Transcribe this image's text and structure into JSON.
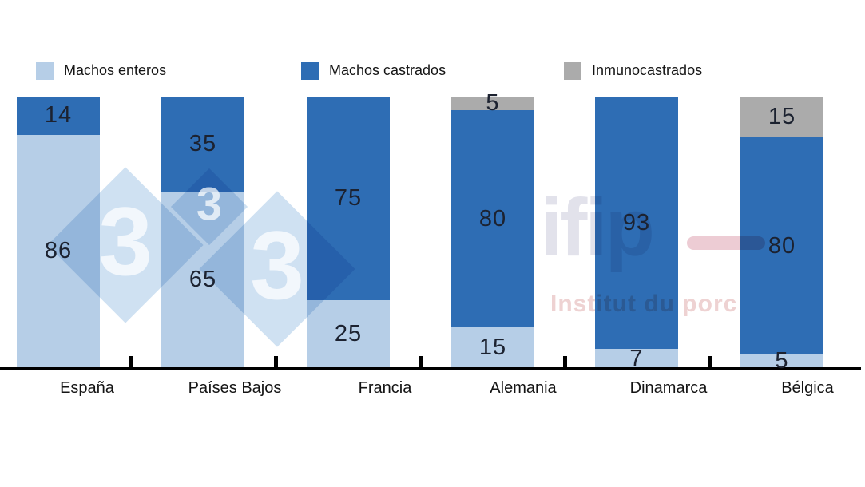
{
  "chart_data": {
    "type": "bar",
    "stacked": true,
    "orientation": "vertical",
    "unit": "%",
    "title": "",
    "xlabel": "",
    "ylabel": "",
    "ylim": [
      0,
      100
    ],
    "grid": false,
    "legend_position": "top",
    "value_labels": true,
    "categories": [
      "España",
      "Países Bajos",
      "Francia",
      "Alemania",
      "Dinamarca",
      "Bélgica"
    ],
    "series": [
      {
        "name": "Machos enteros",
        "color": "#b6cee7",
        "values": [
          86,
          65,
          25,
          15,
          7,
          5
        ]
      },
      {
        "name": "Machos castrados",
        "color": "#2e6db4",
        "values": [
          14,
          35,
          75,
          80,
          93,
          80
        ]
      },
      {
        "name": "Inmunocastrados",
        "color": "#ababab",
        "values": [
          0,
          0,
          0,
          5,
          0,
          15
        ]
      }
    ],
    "value_label_color": "#1c2230",
    "axis_color": "#000000"
  },
  "legend": {
    "items": [
      {
        "label": "Machos enteros",
        "color": "#b6cee7"
      },
      {
        "label": "Machos castrados",
        "color": "#2e6db4"
      },
      {
        "label": "Inmunocastrados",
        "color": "#ababab"
      }
    ]
  },
  "watermarks": {
    "tres3": {
      "digits": [
        "3",
        "3",
        "3"
      ],
      "diamond_color": "#cfe1f2"
    },
    "ifip": {
      "logo": "ifip",
      "subtitle": "Institut du porc",
      "logo_color": "#e2e2eb",
      "accent_color": "#edccd4",
      "subtitle_color": "#eed2d2"
    }
  }
}
